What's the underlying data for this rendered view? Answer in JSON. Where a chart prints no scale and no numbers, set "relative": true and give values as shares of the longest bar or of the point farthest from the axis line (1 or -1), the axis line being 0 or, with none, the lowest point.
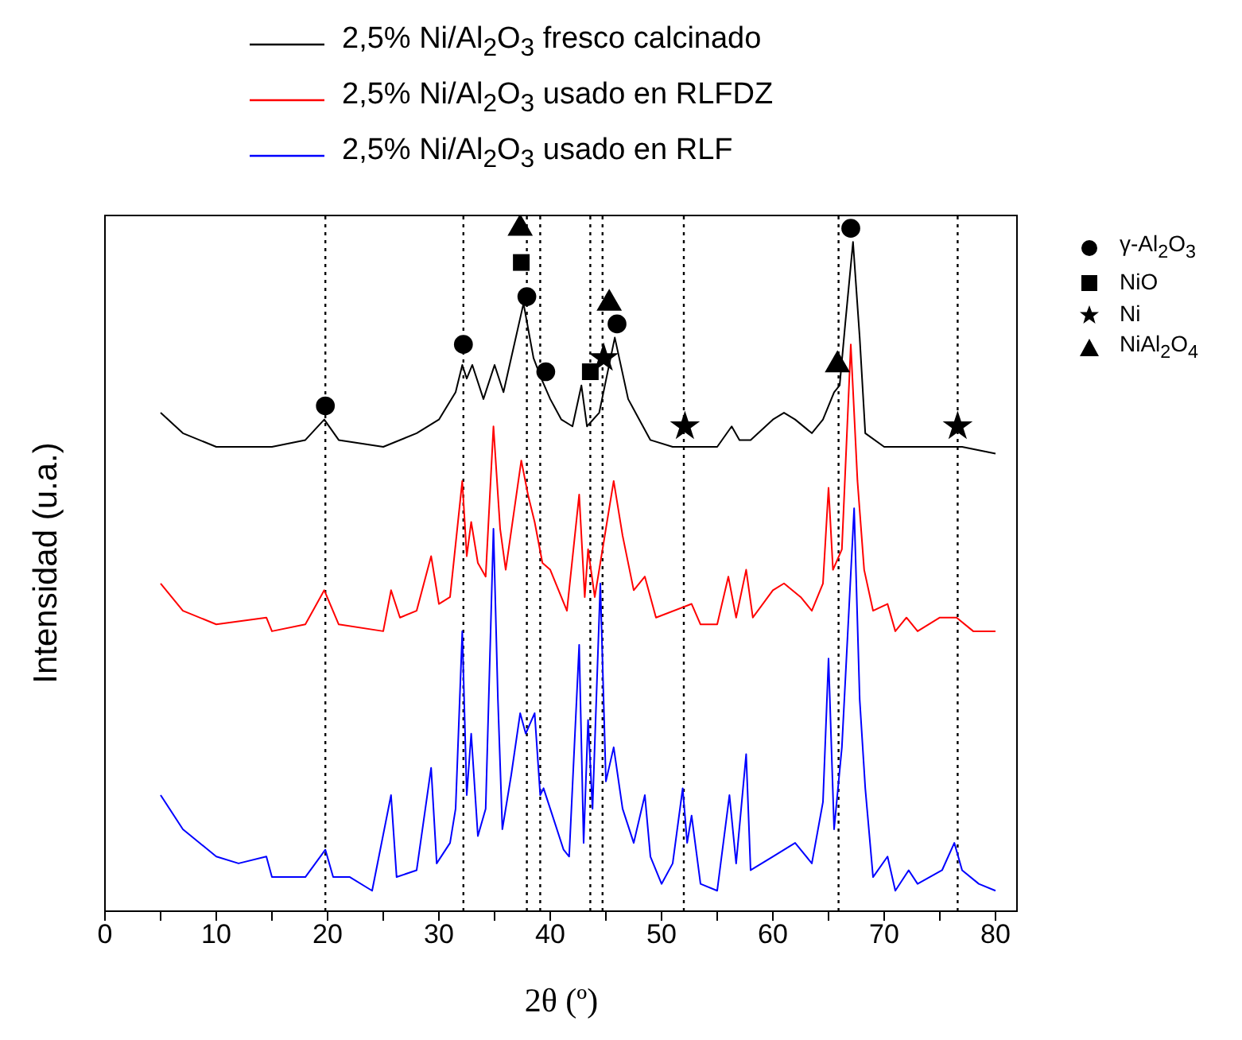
{
  "chart_data": {
    "type": "line",
    "relative": true,
    "xlabel": "2θ (º)",
    "ylabel": "Intensidad (u.a.)",
    "xlim": [
      0,
      82
    ],
    "xticks": [
      0,
      {
        "value": 5,
        "label": null
      },
      10,
      {
        "value": 15,
        "label": null
      },
      20,
      {
        "value": 25,
        "label": null
      },
      30,
      {
        "value": 35,
        "label": null
      },
      40,
      {
        "value": 45,
        "label": null
      },
      50,
      {
        "value": 55,
        "label": null
      },
      60,
      {
        "value": 65,
        "label": null
      },
      70,
      {
        "value": 75,
        "label": null
      },
      80
    ],
    "legend": "top",
    "grid": false,
    "series": [
      {
        "name": "2,5% Ni/Al$_{2}$O$_{3}$ fresco calcinado",
        "color": "#000000",
        "x": [
          5,
          7,
          10,
          15,
          18,
          19.7,
          21,
          25,
          28,
          30,
          31.5,
          32.1,
          32.5,
          33,
          34,
          35,
          35.8,
          37.6,
          38.5,
          39.2,
          40,
          41,
          42,
          42.8,
          43.3,
          44.4,
          45.8,
          47,
          48,
          49,
          51,
          55,
          56.3,
          57,
          58,
          60,
          61,
          62,
          63.5,
          64.5,
          65.5,
          66,
          66.5,
          67.2,
          67.8,
          68.3,
          70,
          75,
          77,
          80
        ],
        "values": [
          0.73,
          0.7,
          0.68,
          0.68,
          0.69,
          0.72,
          0.69,
          0.68,
          0.7,
          0.72,
          0.76,
          0.8,
          0.78,
          0.8,
          0.75,
          0.8,
          0.76,
          0.89,
          0.81,
          0.78,
          0.75,
          0.72,
          0.71,
          0.77,
          0.71,
          0.73,
          0.84,
          0.75,
          0.72,
          0.69,
          0.68,
          0.68,
          0.71,
          0.69,
          0.69,
          0.72,
          0.73,
          0.72,
          0.7,
          0.72,
          0.76,
          0.77,
          0.86,
          0.98,
          0.84,
          0.7,
          0.68,
          0.68,
          0.68,
          0.67
        ]
      },
      {
        "name": "2,5% Ni/Al$_{2}$O$_{3}$ usado en RLFDZ",
        "color": "#ff0000",
        "x": [
          5,
          7,
          10,
          14.5,
          15,
          18,
          19.7,
          21,
          25,
          25.7,
          26.5,
          28,
          29.3,
          30,
          31,
          32.1,
          32.5,
          32.9,
          33.5,
          34.2,
          34.9,
          35.5,
          36,
          37.4,
          38,
          38.6,
          39.3,
          40,
          41.5,
          42.6,
          43.1,
          43.4,
          44,
          45.7,
          46.5,
          47.5,
          48.5,
          49.5,
          52.7,
          53.5,
          55,
          56,
          56.7,
          57.6,
          58.2,
          60,
          61,
          62.5,
          63.5,
          64.5,
          65,
          65.4,
          66.2,
          67,
          67.6,
          68.2,
          69,
          70.3,
          71,
          72,
          73,
          75,
          76.5,
          78,
          80
        ],
        "values": [
          0.48,
          0.44,
          0.42,
          0.43,
          0.41,
          0.42,
          0.47,
          0.42,
          0.41,
          0.47,
          0.43,
          0.44,
          0.52,
          0.45,
          0.46,
          0.63,
          0.52,
          0.57,
          0.51,
          0.49,
          0.71,
          0.56,
          0.5,
          0.66,
          0.61,
          0.57,
          0.51,
          0.5,
          0.44,
          0.61,
          0.46,
          0.53,
          0.46,
          0.63,
          0.55,
          0.47,
          0.49,
          0.43,
          0.45,
          0.42,
          0.42,
          0.49,
          0.43,
          0.5,
          0.43,
          0.47,
          0.48,
          0.46,
          0.44,
          0.48,
          0.62,
          0.5,
          0.53,
          0.83,
          0.63,
          0.5,
          0.44,
          0.45,
          0.41,
          0.43,
          0.41,
          0.43,
          0.43,
          0.41,
          0.41
        ]
      },
      {
        "name": "2,5% Ni/Al$_{2}$O$_{3}$ usado en RLF",
        "color": "#0000ff",
        "x": [
          5,
          7,
          10,
          12,
          14.5,
          15,
          18,
          19.8,
          20.5,
          22,
          24,
          25.7,
          26.2,
          28,
          29.3,
          29.8,
          31,
          31.5,
          32.1,
          32.5,
          32.9,
          33.5,
          34.2,
          34.9,
          35.3,
          35.7,
          36.5,
          37.3,
          37.8,
          38.6,
          39.1,
          39.4,
          40,
          41.2,
          41.7,
          42.6,
          43,
          43.4,
          43.8,
          44.5,
          45,
          45.7,
          46.5,
          47.5,
          48.5,
          49,
          50,
          51,
          51.9,
          52.3,
          52.7,
          53.5,
          55,
          56.1,
          56.7,
          57.6,
          58,
          60,
          62,
          63.5,
          64.5,
          65,
          65.5,
          66.2,
          67.3,
          67.8,
          68.3,
          69,
          70.3,
          71,
          72.2,
          73,
          75.2,
          76.3,
          77,
          78.5,
          80
        ],
        "values": [
          0.17,
          0.12,
          0.08,
          0.07,
          0.08,
          0.05,
          0.05,
          0.09,
          0.05,
          0.05,
          0.03,
          0.17,
          0.05,
          0.06,
          0.21,
          0.07,
          0.1,
          0.15,
          0.41,
          0.17,
          0.26,
          0.11,
          0.15,
          0.56,
          0.31,
          0.12,
          0.2,
          0.29,
          0.26,
          0.29,
          0.17,
          0.18,
          0.15,
          0.09,
          0.08,
          0.39,
          0.1,
          0.28,
          0.15,
          0.48,
          0.19,
          0.24,
          0.15,
          0.1,
          0.17,
          0.08,
          0.04,
          0.07,
          0.18,
          0.1,
          0.14,
          0.04,
          0.03,
          0.17,
          0.07,
          0.23,
          0.06,
          0.08,
          0.1,
          0.07,
          0.16,
          0.37,
          0.12,
          0.24,
          0.59,
          0.31,
          0.18,
          0.05,
          0.08,
          0.03,
          0.06,
          0.04,
          0.06,
          0.1,
          0.06,
          0.04,
          0.03
        ]
      },
      {
        "name": "γ-Al$_{2}$O$_{3}$",
        "color": "#000000",
        "type": "scatter",
        "marker": "circle",
        "x": [
          19.8,
          32.2,
          37.9,
          39.6,
          46.0,
          67.0
        ],
        "values": [
          0.74,
          0.83,
          0.9,
          0.79,
          0.86,
          1.0
        ]
      },
      {
        "name": "NiO",
        "color": "#000000",
        "type": "scatter",
        "marker": "square",
        "x": [
          37.4,
          43.6
        ],
        "values": [
          0.95,
          0.79
        ]
      },
      {
        "name": "Ni",
        "color": "#000000",
        "type": "scatter",
        "marker": "star",
        "x": [
          44.8,
          52.1,
          76.6
        ],
        "values": [
          0.81,
          0.71,
          0.71
        ]
      },
      {
        "name": "NiAl$_{2}$O$_{4}$",
        "color": "#000000",
        "type": "scatter",
        "marker": "triangle",
        "x": [
          37.3,
          45.3,
          65.8
        ],
        "values": [
          1.0,
          0.89,
          0.8
        ]
      }
    ],
    "ref_lines": [
      {
        "axis": "x",
        "value": 19.8,
        "color": "#000000",
        "line_style": "dotted"
      },
      {
        "axis": "x",
        "value": 32.2,
        "color": "#000000",
        "line_style": "dotted"
      },
      {
        "axis": "x",
        "value": 37.9,
        "color": "#000000",
        "line_style": "dotted"
      },
      {
        "axis": "x",
        "value": 39.1,
        "color": "#000000",
        "line_style": "dotted"
      },
      {
        "axis": "x",
        "value": 43.6,
        "color": "#000000",
        "line_style": "dotted"
      },
      {
        "axis": "x",
        "value": 44.7,
        "color": "#000000",
        "line_style": "dotted"
      },
      {
        "axis": "x",
        "value": 52.0,
        "color": "#000000",
        "line_style": "dotted"
      },
      {
        "axis": "x",
        "value": 65.9,
        "color": "#000000",
        "line_style": "dotted"
      },
      {
        "axis": "x",
        "value": 76.6,
        "color": "#000000",
        "line_style": "dotted"
      }
    ]
  }
}
